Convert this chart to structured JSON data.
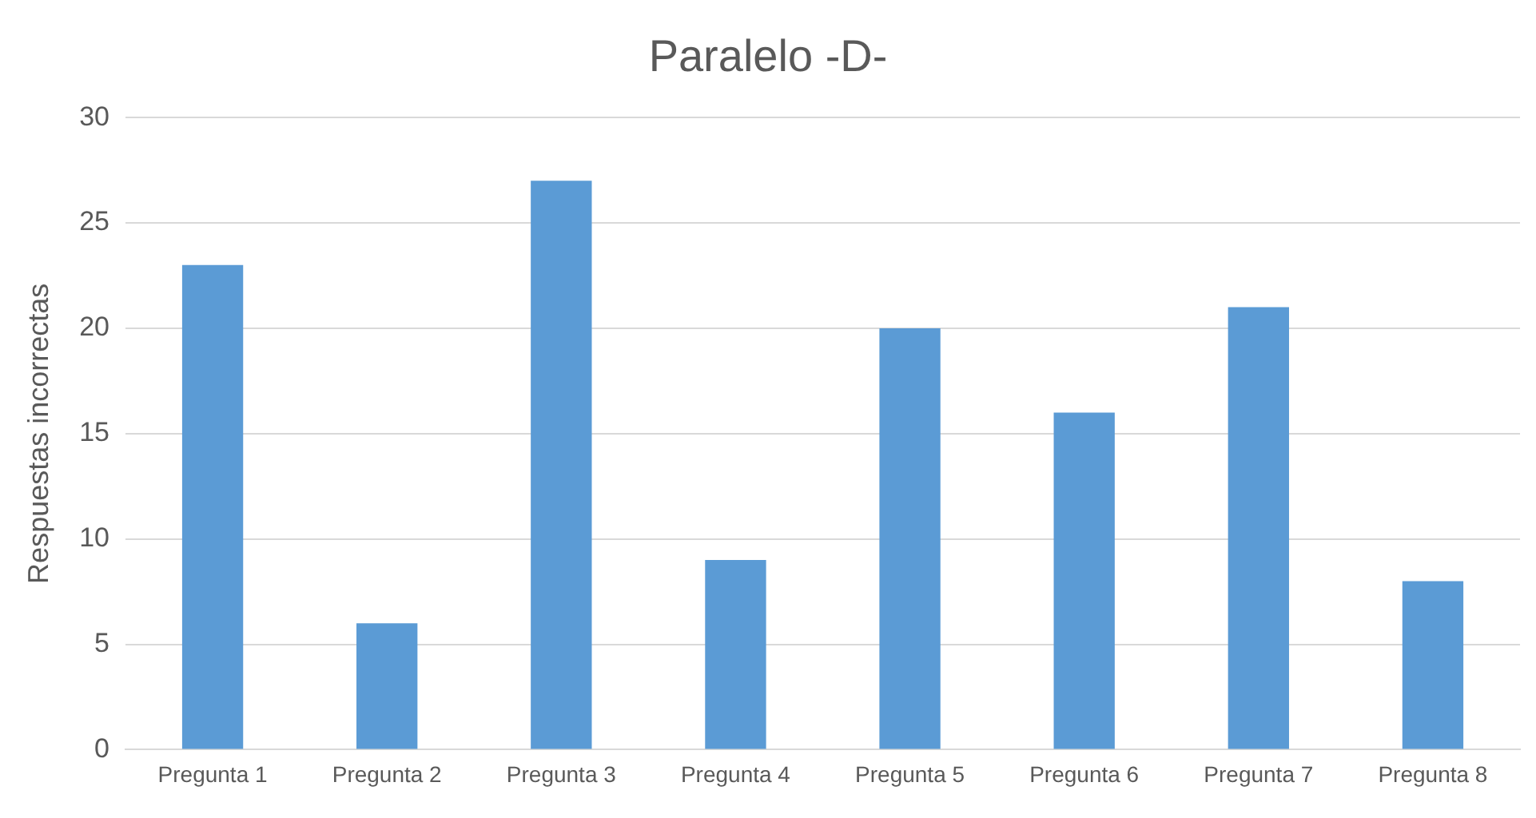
{
  "chart_data": {
    "type": "bar",
    "title": "Paralelo -D-",
    "ylabel": "Respuestas incorrectas",
    "categories": [
      "Pregunta 1",
      "Pregunta 2",
      "Pregunta 3",
      "Pregunta 4",
      "Pregunta 5",
      "Pregunta 6",
      "Pregunta 7",
      "Pregunta 8"
    ],
    "values": [
      23,
      6,
      27,
      9,
      20,
      16,
      21,
      8
    ],
    "color": "#5b9bd5",
    "ylim": [
      0,
      30
    ],
    "yticks": [
      0,
      5,
      10,
      15,
      20,
      25,
      30
    ],
    "grid": "y"
  }
}
